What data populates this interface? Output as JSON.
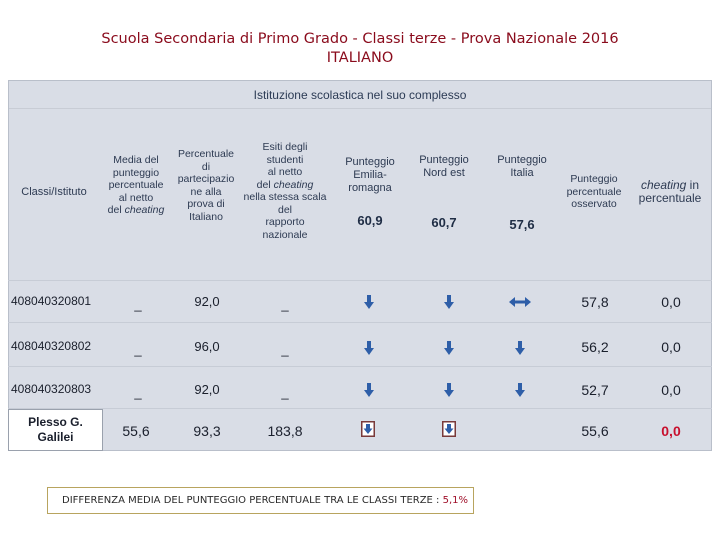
{
  "title": {
    "line1": "Scuola Secondaria di Primo Grado - Classi terze - Prova Nazionale 2016",
    "line2": "ITALIANO"
  },
  "panel_heading": "Istituzione scolastica nel suo complesso",
  "columns": {
    "classi": "Classi/Istituto",
    "media": [
      "Media del",
      "punteggio",
      "percentuale",
      "al netto"
    ],
    "media_last": "del ",
    "media_last_italic": "cheating",
    "partecipazione": [
      "Percentuale",
      "di",
      "partecipazio",
      "ne alla",
      "prova di",
      "Italiano"
    ],
    "esiti_a": [
      "Esiti degli",
      "studenti",
      "al netto"
    ],
    "esiti_mid": "del ",
    "esiti_mid_italic": "cheating",
    "esiti_b": [
      "nella stessa scala",
      "del",
      "rapporto",
      "nazionale"
    ],
    "emilia": [
      "Punteggio",
      "Emilia-",
      "romagna"
    ],
    "nordest": [
      "Punteggio",
      "Nord est"
    ],
    "italia": [
      "Punteggio",
      "Italia"
    ],
    "osservato": [
      "Punteggio",
      "percentuale",
      "osservato"
    ],
    "cheating_italic": "cheating",
    "cheating_rest": " in",
    "cheating_last": "percentuale"
  },
  "benchmarks": {
    "emilia": "60,9",
    "nordest": "60,7",
    "italia": "57,6"
  },
  "rows": [
    {
      "id": "408040320801",
      "media": "_",
      "partecipazione": "92,0",
      "esiti": "_",
      "emilia_icon": "arrow-down",
      "nordest_icon": "arrow-down",
      "italia_icon": "arrows-left-right",
      "osservato": "57,8",
      "cheating": "0,0"
    },
    {
      "id": "408040320802",
      "media": "_",
      "partecipazione": "96,0",
      "esiti": "_",
      "emilia_icon": "arrow-down",
      "nordest_icon": "arrow-down",
      "italia_icon": "arrow-down",
      "osservato": "56,2",
      "cheating": "0,0"
    },
    {
      "id": "408040320803",
      "media": "_",
      "partecipazione": "92,0",
      "esiti": "_",
      "emilia_icon": "arrow-down",
      "nordest_icon": "arrow-down",
      "italia_icon": "arrow-down",
      "osservato": "52,7",
      "cheating": "0,0"
    }
  ],
  "plesso": {
    "label_line1": "Plesso G.",
    "label_line2": "Galilei",
    "media": "55,6",
    "partecipazione": "93,3",
    "esiti": "183,8",
    "emilia_icon": "boxed-arrow-down",
    "nordest_icon": "boxed-arrow-down",
    "osservato": "55,6",
    "cheating": "0,0"
  },
  "footer": {
    "label": "DIFFERENZA MEDIA DEL PUNTEGGIO PERCENTUALE  TRA LE CLASSI TERZE : ",
    "value": "5,1%"
  },
  "colors": {
    "title": "#8a0b1c",
    "arrow": "#2e5ea8",
    "panel": "#d9dde6",
    "highlight": "#c8102e"
  }
}
